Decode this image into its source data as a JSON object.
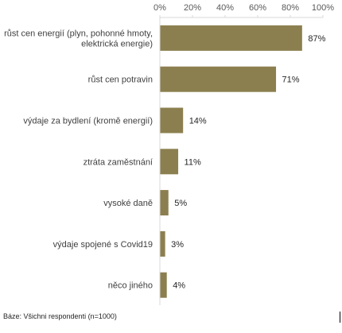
{
  "chart_data": {
    "type": "bar",
    "orientation": "horizontal",
    "categories": [
      [
        "růst cen energií (plyn, pohonné hmoty,",
        "elektrická energie)"
      ],
      [
        "růst cen potravin"
      ],
      [
        "výdaje za bydlení (kromě energií)"
      ],
      [
        "ztráta zaměstnání"
      ],
      [
        "vysoké daně"
      ],
      [
        "výdaje spojené s Covid19"
      ],
      [
        "něco jiného"
      ]
    ],
    "values": [
      87,
      71,
      14,
      11,
      5,
      3,
      4
    ],
    "data_labels": [
      "87%",
      "71%",
      "14%",
      "11%",
      "5%",
      "3%",
      "4%"
    ],
    "xlim": [
      0,
      100
    ],
    "x_ticks": [
      0,
      20,
      40,
      60,
      80,
      100
    ],
    "x_tick_labels": [
      "0%",
      "20%",
      "40%",
      "60%",
      "80%",
      "100%"
    ],
    "axis_position": "top",
    "grid": false,
    "bar_color": "#8c7f4f"
  },
  "footnote": "Báze: Všichni respondenti (n=1000)"
}
